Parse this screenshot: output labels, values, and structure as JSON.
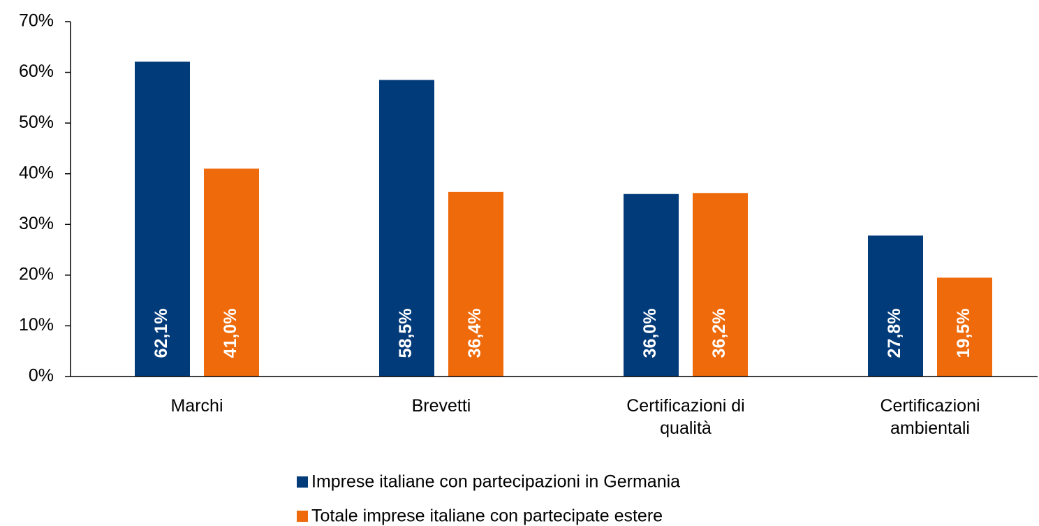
{
  "chart_data": {
    "type": "bar",
    "categories": [
      "Marchi",
      "Brevetti",
      "Certificazioni di qualità",
      "Certificazioni ambientali"
    ],
    "series": [
      {
        "name": "Imprese italiane con partecipazioni in Germania",
        "color": "#023b7a",
        "values": [
          62.1,
          58.5,
          36.0,
          27.8
        ],
        "value_labels": [
          "62,1%",
          "58,5%",
          "36,0%",
          "27,8%"
        ]
      },
      {
        "name": "Totale imprese italiane con partecipate estere",
        "color": "#ee6a0a",
        "values": [
          41.0,
          36.4,
          36.2,
          19.5
        ],
        "value_labels": [
          "41,0%",
          "36,4%",
          "36,2%",
          "19,5%"
        ]
      }
    ],
    "ylim": [
      0,
      70
    ],
    "yticks": [
      {
        "value": 0,
        "label": "0%"
      },
      {
        "value": 10,
        "label": "10%"
      },
      {
        "value": 20,
        "label": "20%"
      },
      {
        "value": 30,
        "label": "30%"
      },
      {
        "value": 40,
        "label": "40%"
      },
      {
        "value": 50,
        "label": "50%"
      },
      {
        "value": 60,
        "label": "60%"
      },
      {
        "value": 70,
        "label": "70%"
      }
    ],
    "legend": "bottom",
    "grid": false
  }
}
